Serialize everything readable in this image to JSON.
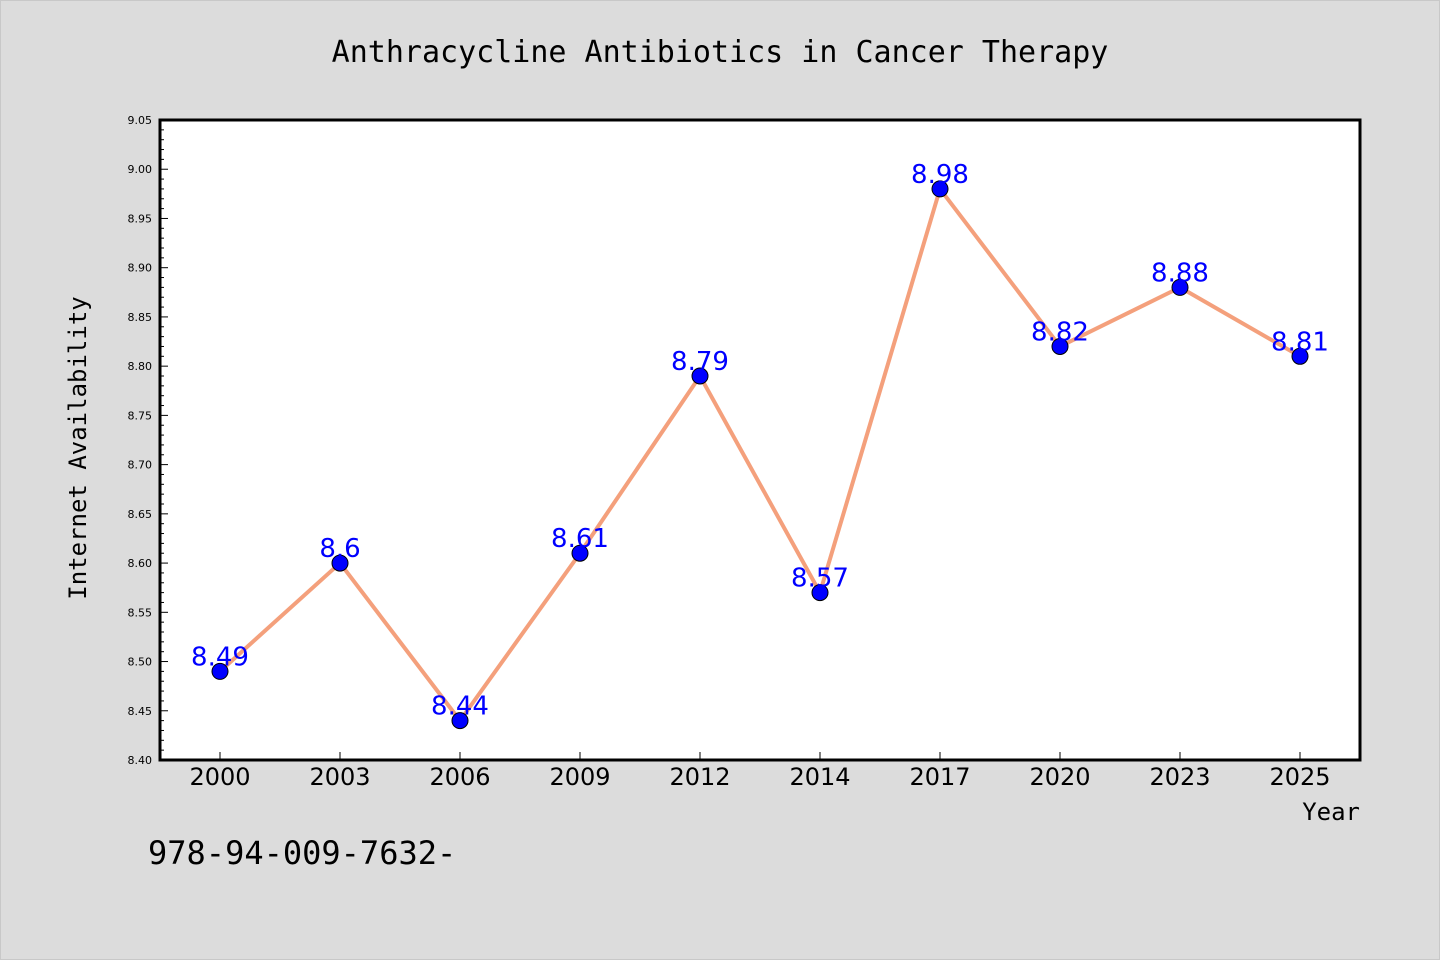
{
  "chart_data": {
    "type": "line",
    "title": "Anthracycline Antibiotics in Cancer Therapy",
    "xlabel": "Year",
    "ylabel": "Internet Availability",
    "categories": [
      "2000",
      "2003",
      "2006",
      "2009",
      "2012",
      "2014",
      "2017",
      "2020",
      "2023",
      "2025"
    ],
    "values": [
      8.49,
      8.6,
      8.44,
      8.61,
      8.79,
      8.57,
      8.98,
      8.82,
      8.88,
      8.81
    ],
    "data_labels": [
      "8.49",
      "8.6",
      "8.44",
      "8.61",
      "8.79",
      "8.57",
      "8.98",
      "8.82",
      "8.88",
      "8.81"
    ],
    "ylim": [
      8.4,
      9.05
    ],
    "yticks": [
      "8.40",
      "8.45",
      "8.50",
      "8.55",
      "8.60",
      "8.65",
      "8.70",
      "8.75",
      "8.80",
      "8.85",
      "8.90",
      "8.95",
      "9.00",
      "9.05"
    ],
    "grid": false,
    "line_color": "#f4a07c",
    "marker_color": "#0000ff",
    "label_color": "#0000ff"
  },
  "footer_text": "978-94-009-7632-"
}
